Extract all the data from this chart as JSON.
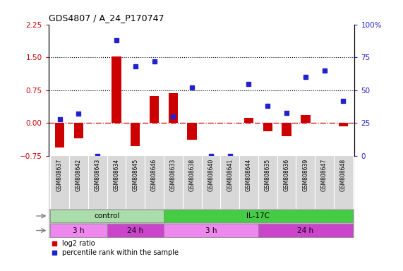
{
  "title": "GDS4807 / A_24_P170747",
  "samples": [
    "GSM808637",
    "GSM808642",
    "GSM808643",
    "GSM808634",
    "GSM808645",
    "GSM808646",
    "GSM808633",
    "GSM808638",
    "GSM808640",
    "GSM808641",
    "GSM808644",
    "GSM808635",
    "GSM808636",
    "GSM808639",
    "GSM808647",
    "GSM808648"
  ],
  "log2_ratio": [
    -0.55,
    -0.35,
    0.0,
    1.52,
    -0.52,
    0.62,
    0.68,
    -0.38,
    0.0,
    0.0,
    0.12,
    -0.18,
    -0.3,
    0.18,
    0.0,
    -0.08
  ],
  "percentile": [
    28,
    32,
    0,
    88,
    68,
    72,
    30,
    52,
    0,
    0,
    55,
    38,
    33,
    60,
    65,
    42
  ],
  "ylim_left": [
    -0.75,
    2.25
  ],
  "ylim_right": [
    0,
    100
  ],
  "yticks_left": [
    -0.75,
    0.0,
    0.75,
    1.5,
    2.25
  ],
  "yticks_right": [
    0,
    25,
    50,
    75,
    100
  ],
  "hlines": [
    1.5,
    0.75
  ],
  "bar_color": "#cc0000",
  "dot_color": "#2222cc",
  "zero_line_color": "#cc0000",
  "agent_groups": [
    {
      "label": "control",
      "start": 0,
      "end": 6,
      "color": "#aaddaa"
    },
    {
      "label": "IL-17C",
      "start": 6,
      "end": 16,
      "color": "#44cc44"
    }
  ],
  "time_groups": [
    {
      "label": "3 h",
      "start": 0,
      "end": 3,
      "color": "#ee88ee"
    },
    {
      "label": "24 h",
      "start": 3,
      "end": 6,
      "color": "#cc44cc"
    },
    {
      "label": "3 h",
      "start": 6,
      "end": 11,
      "color": "#ee88ee"
    },
    {
      "label": "24 h",
      "start": 11,
      "end": 16,
      "color": "#cc44cc"
    }
  ],
  "bg_color": "#ffffff",
  "label_bg": "#d8d8d8",
  "legend_red_label": "log2 ratio",
  "legend_blue_label": "percentile rank within the sample"
}
